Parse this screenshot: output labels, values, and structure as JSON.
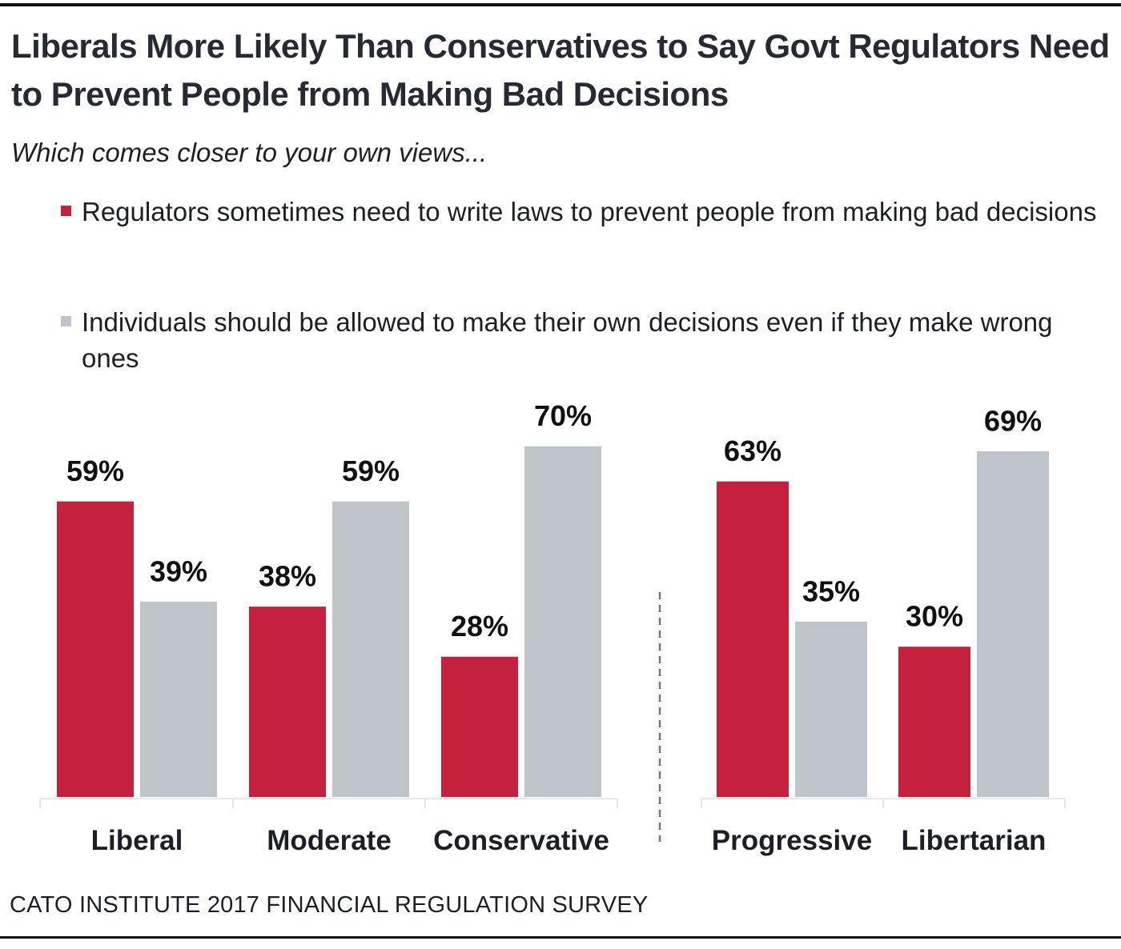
{
  "chart_data": {
    "type": "bar",
    "title": "Liberals More Likely Than Conservatives to Say Govt Regulators Need to Prevent People from Making Bad Decisions",
    "subtitle": "Which comes closer to your own views...",
    "xlabel": "",
    "ylabel": "",
    "ylim": [
      0,
      70
    ],
    "grid": false,
    "legend_placement": "top-left",
    "value_format": "percent",
    "groups": [
      {
        "name": "ideology",
        "categories": [
          "Liberal",
          "Moderate",
          "Conservative"
        ]
      },
      {
        "name": "self-identification",
        "categories": [
          "Progressive",
          "Libertarian"
        ]
      }
    ],
    "categories": [
      "Liberal",
      "Moderate",
      "Conservative",
      "Progressive",
      "Libertarian"
    ],
    "series": [
      {
        "name": "Regulators sometimes need to write laws to prevent people from making bad decisions",
        "color": "#c5213d",
        "values": [
          59,
          38,
          28,
          63,
          30
        ]
      },
      {
        "name": "Individuals should be allowed to make their own decisions even if they make wrong ones",
        "color": "#bfc3ca",
        "values": [
          39,
          59,
          70,
          35,
          69
        ]
      }
    ],
    "data_labels": [
      [
        "59%",
        "38%",
        "28%",
        "63%",
        "30%"
      ],
      [
        "39%",
        "59%",
        "70%",
        "35%",
        "69%"
      ]
    ],
    "source": "CATO INSTITUTE 2017 FINANCIAL REGULATION SURVEY"
  },
  "header": {
    "title": "Liberals More Likely Than Conservatives to Say Govt Regulators Need to Prevent People from Making Bad Decisions",
    "subtitle": "Which comes closer to your own views..."
  },
  "legend": [
    {
      "label": "Regulators sometimes need to write laws to prevent people from making bad decisions",
      "color": "#c5213d"
    },
    {
      "label": "Individuals should be allowed to make their own decisions even if they make wrong ones",
      "color": "#bfc3ca"
    }
  ],
  "footer": {
    "source": "CATO INSTITUTE 2017 FINANCIAL REGULATION SURVEY"
  }
}
